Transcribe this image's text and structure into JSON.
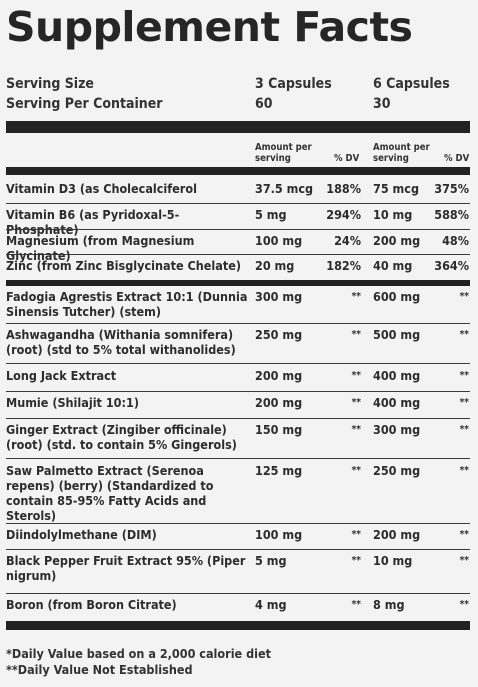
{
  "title": "Supplement Facts",
  "serving": {
    "size_label": "Serving Size",
    "per_container_label": "Serving Per Container",
    "col1_size": "3 Capsules",
    "col1_count": "60",
    "col2_size": "6 Capsules",
    "col2_count": "30"
  },
  "header": {
    "amount_line1": "Amount per",
    "amount_line2": "serving",
    "dv": "% DV"
  },
  "nutrients": [
    {
      "name": "Vitamin D3 (as Cholecalciferol",
      "amt1": "37.5 mcg",
      "dv1": "188%",
      "amt2": "75 mcg",
      "dv2": "375%"
    },
    {
      "name": "Vitamin B6 (as Pyridoxal-5-Phosphate)",
      "amt1": "5 mg",
      "dv1": "294%",
      "amt2": "10 mg",
      "dv2": "588%"
    },
    {
      "name": "Magnesium (from Magnesium Glycinate)",
      "amt1": "100 mg",
      "dv1": "24%",
      "amt2": "200 mg",
      "dv2": "48%"
    },
    {
      "name": "Zinc (from Zinc Bisglycinate Chelate)",
      "amt1": "20 mg",
      "dv1": "182%",
      "amt2": "40 mg",
      "dv2": "364%"
    }
  ],
  "extracts": [
    {
      "name": "Fadogia Agrestis Extract 10:1 (Dunnia Sinensis Tutcher) (stem)",
      "amt1": "300 mg",
      "dv1": "**",
      "amt2": "600 mg",
      "dv2": "**"
    },
    {
      "name": "Ashwagandha (Withania somnifera) (root) (std to 5% total withanolides)",
      "amt1": "250 mg",
      "dv1": "**",
      "amt2": "500 mg",
      "dv2": "**"
    },
    {
      "name": "Long Jack Extract",
      "amt1": "200 mg",
      "dv1": "**",
      "amt2": "400 mg",
      "dv2": "**"
    },
    {
      "name": "Mumie (Shilajit 10:1)",
      "amt1": "200 mg",
      "dv1": "**",
      "amt2": "400 mg",
      "dv2": "**"
    },
    {
      "name": "Ginger Extract (Zingiber officinale) (root) (std. to contain 5% Gingerols)",
      "amt1": "150 mg",
      "dv1": "**",
      "amt2": "300 mg",
      "dv2": "**"
    },
    {
      "name": "Saw Palmetto Extract (Serenoa repens) (berry) (Standardized to contain 85-95% Fatty Acids and Sterols)",
      "amt1": "125 mg",
      "dv1": "**",
      "amt2": "250 mg",
      "dv2": "**"
    },
    {
      "name": "Diindolylmethane (DIM)",
      "amt1": "100 mg",
      "dv1": "**",
      "amt2": "200 mg",
      "dv2": "**"
    },
    {
      "name": "Black Pepper Fruit Extract 95% (Piper nigrum)",
      "amt1": "5 mg",
      "dv1": "**",
      "amt2": "10 mg",
      "dv2": "**"
    },
    {
      "name": "Boron (from Boron Citrate)",
      "amt1": "4 mg",
      "dv1": "**",
      "amt2": "8 mg",
      "dv2": "**"
    }
  ],
  "footnotes": {
    "dv_note": "*Daily Value based on a 2,000 calorie diet",
    "nodv_note": "**Daily Value Not Established"
  }
}
